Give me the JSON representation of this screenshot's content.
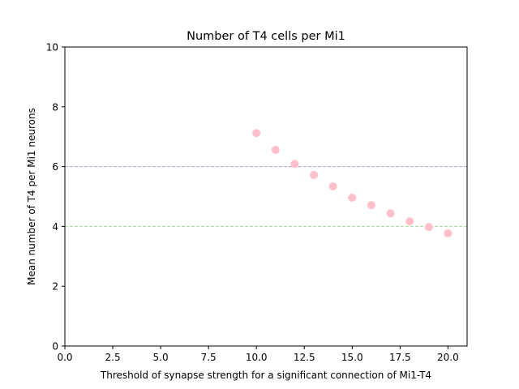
{
  "chart_data": {
    "type": "scatter",
    "title": "Number of T4 cells per Mi1",
    "xlabel": "Threshold of synapse strength for a significant connection of Mi1-T4",
    "ylabel": "Mean number of T4 per Mi1 neurons",
    "xlim": [
      0,
      21
    ],
    "ylim": [
      0,
      10
    ],
    "xticks": [
      0,
      2.5,
      5,
      7.5,
      10,
      12.5,
      15,
      17.5,
      20
    ],
    "xtick_labels": [
      "0.0",
      "2.5",
      "5.0",
      "7.5",
      "10.0",
      "12.5",
      "15.0",
      "17.5",
      "20.0"
    ],
    "yticks": [
      0,
      2,
      4,
      6,
      8,
      10
    ],
    "ytick_labels": [
      "0",
      "2",
      "4",
      "6",
      "8",
      "10"
    ],
    "grid": false,
    "legend": "none",
    "series": [
      {
        "x": [
          10,
          11,
          12,
          13,
          14,
          15,
          16,
          17,
          18,
          19,
          20
        ],
        "y": [
          7.12,
          6.56,
          6.09,
          5.72,
          5.34,
          4.96,
          4.71,
          4.44,
          4.17,
          3.98,
          3.77
        ],
        "color": "#ffc0cb"
      }
    ],
    "reference_lines": [
      {
        "y": 6,
        "color": "#b0a4d8",
        "style": "dashed"
      },
      {
        "y": 4,
        "color": "#9ee09e",
        "style": "dashed"
      }
    ]
  }
}
